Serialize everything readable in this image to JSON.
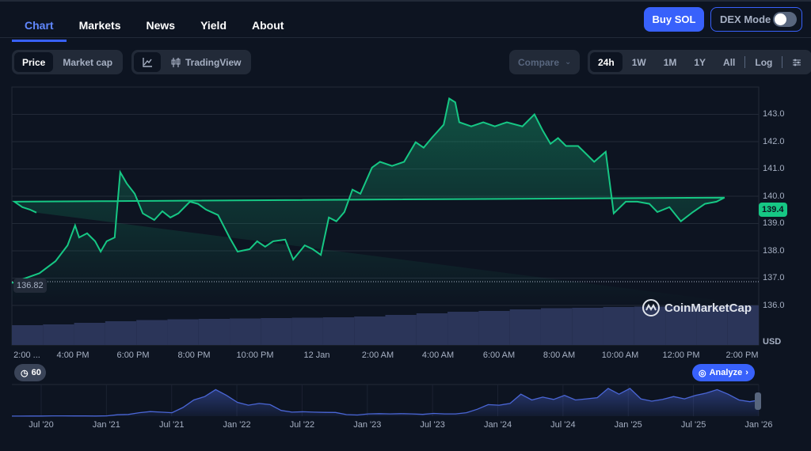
{
  "nav": {
    "tabs": [
      "Chart",
      "Markets",
      "News",
      "Yield",
      "About"
    ],
    "active": "Chart"
  },
  "header": {
    "buy_label": "Buy SOL",
    "dex_label": "DEX Mode",
    "dex_on": false
  },
  "toolbar": {
    "type_options": [
      "Price",
      "Market cap"
    ],
    "type_selected": "Price",
    "line_icon": "line-chart-icon",
    "tradingview_label": "TradingView",
    "compare_label": "Compare",
    "ranges": [
      "24h",
      "1W",
      "1M",
      "1Y",
      "All"
    ],
    "range_selected": "24h",
    "log_label": "Log",
    "settings_icon": "sliders-icon"
  },
  "colors": {
    "accent": "#3861fb",
    "line": "#16c784",
    "volume": "#2b3559",
    "overview": "#4a66d6"
  },
  "chart_data": [
    {
      "type": "line",
      "title": "",
      "xlabel": "",
      "ylabel": "USD",
      "currency_label": "USD",
      "ylim": [
        134.55,
        144.0
      ],
      "yticks": [
        "143.0",
        "142.0",
        "141.0",
        "140.0",
        "139.0",
        "138.0",
        "137.0",
        "136.0"
      ],
      "xticks": [
        "2:00 ...",
        "4:00 PM",
        "6:00 PM",
        "8:00 PM",
        "10:00 PM",
        "12 Jan",
        "2:00 AM",
        "4:00 AM",
        "6:00 AM",
        "8:00 AM",
        "10:00 AM",
        "12:00 PM",
        "2:00 PM"
      ],
      "open_price": "136.82",
      "current_price": "139.4",
      "times": [
        "14:00",
        "14:55",
        "15:27",
        "15:51",
        "16:06",
        "16:14",
        "16:30",
        "16:46",
        "16:57",
        "17:09",
        "17:25",
        "17:36",
        "17:49",
        "18:05",
        "18:21",
        "18:44",
        "19:00",
        "19:16",
        "19:32",
        "19:55",
        "20:11",
        "20:27",
        "20:51",
        "21:14",
        "21:30",
        "21:54",
        "22:09",
        "22:25",
        "22:41",
        "23:05",
        "23:21",
        "23:44",
        "00:00",
        "00:16",
        "00:32",
        "00:47",
        "01:03",
        "01:19",
        "01:35",
        "01:58",
        "02:14",
        "02:38",
        "03:02",
        "03:25",
        "03:41",
        "03:57",
        "04:21",
        "04:32",
        "04:44",
        "04:52",
        "05:16",
        "05:40",
        "06:03",
        "06:27",
        "06:58",
        "07:22",
        "07:38",
        "07:54",
        "08:09",
        "08:25",
        "08:49",
        "09:05",
        "09:21",
        "09:44",
        "10:00",
        "10:24",
        "10:47",
        "11:11",
        "11:27",
        "11:51",
        "12:14",
        "12:38",
        "13:02",
        "13:25",
        "13:41",
        "14:05",
        "14:21",
        "14:36",
        "14:49"
      ],
      "values": [
        136.82,
        137.18,
        137.62,
        138.2,
        138.93,
        138.49,
        138.64,
        138.35,
        137.97,
        138.35,
        138.49,
        140.88,
        140.47,
        140.09,
        139.37,
        139.13,
        139.45,
        139.22,
        139.37,
        139.8,
        139.72,
        139.51,
        139.31,
        138.49,
        137.97,
        138.06,
        138.35,
        138.15,
        138.35,
        138.41,
        137.68,
        138.2,
        138.06,
        137.85,
        139.22,
        139.08,
        139.42,
        140.24,
        140.09,
        141.05,
        141.26,
        141.11,
        141.26,
        141.98,
        141.78,
        142.13,
        142.62,
        143.58,
        143.44,
        142.71,
        142.56,
        142.71,
        142.56,
        142.71,
        142.56,
        143.0,
        142.42,
        141.92,
        142.13,
        141.84,
        141.84,
        141.55,
        141.26,
        141.63,
        139.37,
        139.8,
        139.8,
        139.72,
        139.42,
        139.6,
        139.08,
        139.42,
        139.72,
        139.8,
        139.95,
        139.8,
        139.6,
        139.51,
        139.4
      ],
      "volume_relative": [
        0.5,
        0.52,
        0.56,
        0.6,
        0.63,
        0.65,
        0.66,
        0.67,
        0.68,
        0.69,
        0.7,
        0.72,
        0.76,
        0.8,
        0.84,
        0.86,
        0.9,
        0.93,
        0.94,
        0.96,
        0.97,
        0.98,
        0.99,
        1.0
      ]
    },
    {
      "type": "area",
      "xticks": [
        "Jul '20",
        "Jan '21",
        "Jul '21",
        "Jan '22",
        "Jul '22",
        "Jan '23",
        "Jul '23",
        "Jan '24",
        "Jul '24",
        "Jan '25",
        "Jul '25",
        "Jan '26"
      ],
      "start": "Apr 2020",
      "interval": "monthly",
      "values": [
        0.7,
        0.6,
        1.2,
        1.5,
        3,
        3,
        2,
        2,
        1.5,
        3,
        12,
        15,
        30,
        40,
        35,
        30,
        75,
        140,
        170,
        230,
        180,
        120,
        95,
        110,
        100,
        50,
        35,
        38,
        35,
        33,
        32,
        14,
        10,
        20,
        22,
        20,
        22,
        20,
        16,
        24,
        20,
        20,
        30,
        60,
        100,
        95,
        110,
        190,
        140,
        165,
        145,
        180,
        140,
        150,
        160,
        240,
        190,
        240,
        150,
        130,
        145,
        170,
        150,
        180,
        200,
        230,
        190,
        140,
        125,
        139
      ]
    }
  ],
  "bottom": {
    "history_label": "60",
    "analyze_label": "Analyze",
    "watermark": "CoinMarketCap"
  }
}
